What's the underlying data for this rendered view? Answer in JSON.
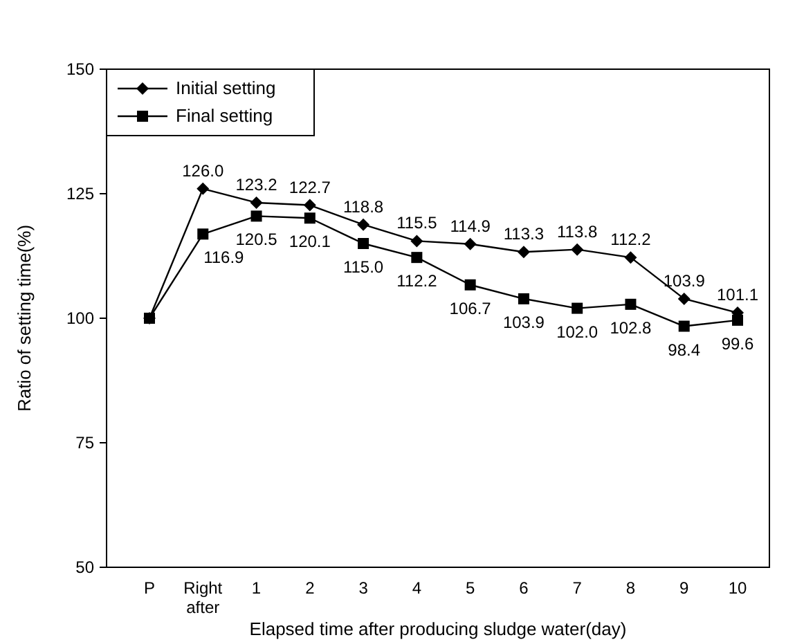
{
  "chart_data": {
    "type": "line",
    "xlabel": "Elapsed time after producing sludge water(day)",
    "ylabel": "Ratio of setting time(%)",
    "categories": [
      "P",
      "Right after",
      "1",
      "2",
      "3",
      "4",
      "5",
      "6",
      "7",
      "8",
      "9",
      "10"
    ],
    "series": [
      {
        "name": "Initial setting",
        "color": "#000000",
        "marker": "diamond",
        "values": [
          100,
          126.0,
          123.2,
          122.7,
          118.8,
          115.5,
          114.9,
          113.3,
          113.8,
          112.2,
          103.9,
          101.1
        ],
        "value_labels": [
          null,
          "126.0",
          "123.2",
          "122.7",
          "118.8",
          "115.5",
          "114.9",
          "113.3",
          "113.8",
          "112.2",
          "103.9",
          "101.1"
        ]
      },
      {
        "name": "Final setting",
        "color": "#000000",
        "marker": "square",
        "values": [
          100,
          116.9,
          120.5,
          120.1,
          115.0,
          112.2,
          106.7,
          103.9,
          102.0,
          102.8,
          98.4,
          99.6
        ],
        "value_labels": [
          null,
          "116.9",
          "120.5",
          "120.1",
          "115.0",
          "112.2",
          "106.7",
          "103.9",
          "102.0",
          "102.8",
          "98.4",
          "99.6"
        ]
      }
    ],
    "ylim": [
      50,
      150
    ],
    "yticks": [
      50,
      75,
      100,
      125,
      150
    ],
    "grid": false,
    "legend": "top left"
  }
}
